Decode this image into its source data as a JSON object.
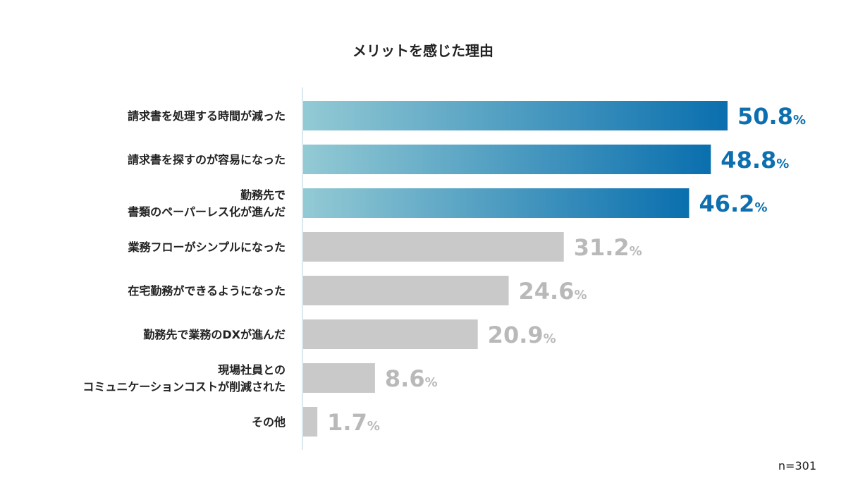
{
  "chart_data": {
    "type": "bar",
    "orientation": "horizontal",
    "title": "メリットを感じた理由",
    "categories": [
      [
        "請求書を処理する時間が減った"
      ],
      [
        "請求書を探すのが容易になった"
      ],
      [
        "勤務先で",
        "書類のペーパーレス化が進んだ"
      ],
      [
        "業務フローがシンプルになった"
      ],
      [
        "在宅勤務ができるようになった"
      ],
      [
        "勤務先で業務のDXが進んだ"
      ],
      [
        "現場社員との",
        "コミュニケーションコストが削減された"
      ],
      [
        "その他"
      ]
    ],
    "values": [
      50.8,
      48.8,
      46.2,
      31.2,
      24.6,
      20.9,
      8.6,
      1.7
    ],
    "value_labels": [
      "50.8",
      "48.8",
      "46.2",
      "31.2",
      "24.6",
      "20.9",
      "8.6",
      "1.7"
    ],
    "unit": "%",
    "highlight_count": 3,
    "xlim": [
      0,
      50.8
    ],
    "grid": false,
    "legend": "none",
    "sample_size": "n=301",
    "colors": {
      "highlight_start": "#93cad4",
      "highlight_end": "#0a6fae",
      "highlight_label": "#0d6fb0",
      "normal_bar": "#c9c9c9",
      "normal_label": "#b9b9b9",
      "text": "#222222",
      "axis": "#cfe3ea"
    }
  }
}
